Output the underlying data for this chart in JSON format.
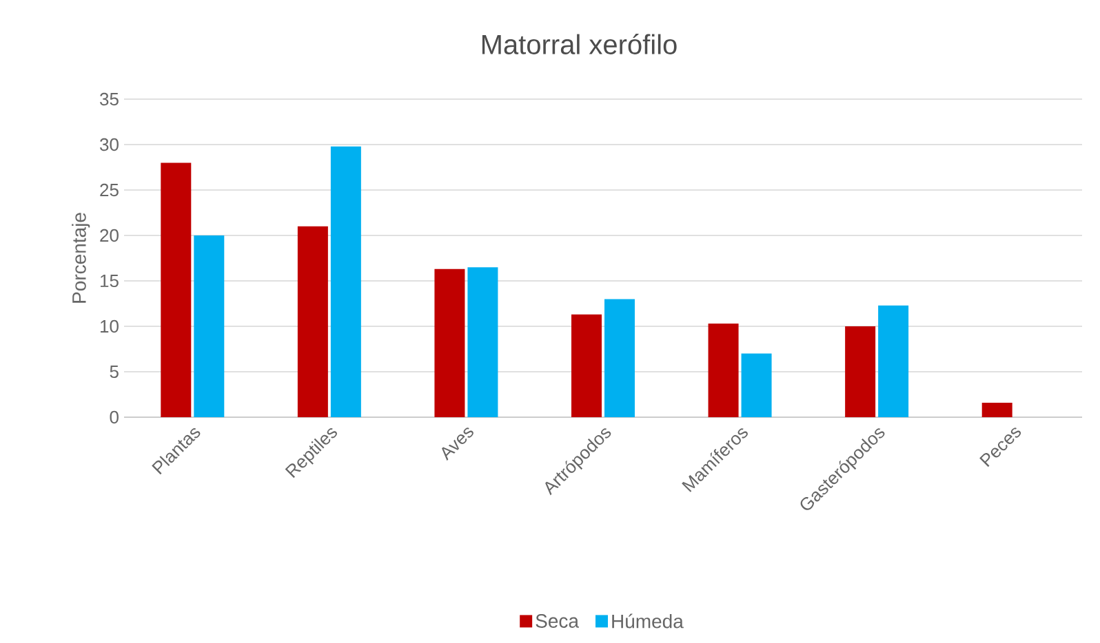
{
  "chart_data": {
    "type": "bar",
    "title": "Matorral xerófilo",
    "ylabel": "Porcentaje",
    "categories": [
      "Plantas",
      "Reptiles",
      "Aves",
      "Artrópodos",
      "Mamíferos",
      "Gasterópodos",
      "Peces"
    ],
    "series": [
      {
        "name": "Seca",
        "color": "#c00000",
        "values": [
          28,
          21,
          16.3,
          11.3,
          10.3,
          10,
          1.6
        ]
      },
      {
        "name": "Húmeda",
        "color": "#00b0f0",
        "values": [
          20,
          29.8,
          16.5,
          13,
          7,
          12.3,
          null
        ]
      }
    ],
    "ylim": [
      0,
      35
    ],
    "yticks": [
      0,
      5,
      10,
      15,
      20,
      25,
      30,
      35
    ],
    "grid": "y",
    "legend": "bottom"
  }
}
